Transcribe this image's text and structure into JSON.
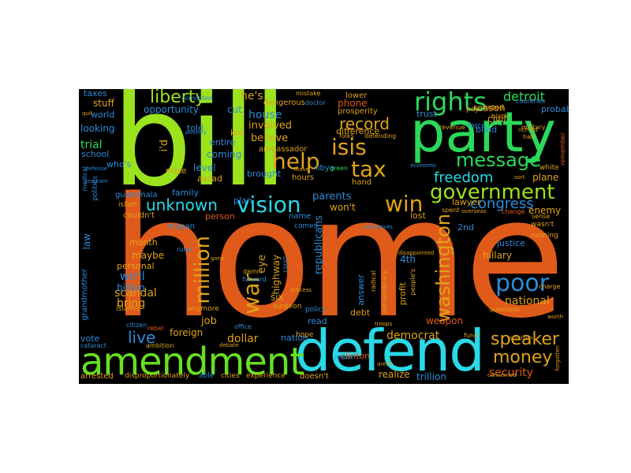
{
  "cloud": {
    "background": "#000000",
    "words": [
      {
        "text": "home",
        "color": "#e05a1a"
      },
      {
        "text": "bill",
        "color": "#9be31d"
      },
      {
        "text": "party",
        "color": "#2bd95a"
      },
      {
        "text": "defend",
        "color": "#29d9e6"
      },
      {
        "text": "amendment",
        "color": "#66e021"
      },
      {
        "text": "rights",
        "color": "#2bd95a"
      },
      {
        "text": "government",
        "color": "#9be31d"
      },
      {
        "text": "message",
        "color": "#2bd95a"
      },
      {
        "text": "tax",
        "color": "#e0a21a"
      },
      {
        "text": "isis",
        "color": "#e0a21a"
      },
      {
        "text": "vision",
        "color": "#29d9e6"
      },
      {
        "text": "help",
        "color": "#e0a21a"
      },
      {
        "text": "freedom",
        "color": "#29d9e6"
      },
      {
        "text": "win",
        "color": "#e0a21a"
      },
      {
        "text": "poor",
        "color": "#2b8cd9"
      },
      {
        "text": "speaker",
        "color": "#e0a21a"
      },
      {
        "text": "money",
        "color": "#e0a21a"
      },
      {
        "text": "war",
        "color": "#e0a21a"
      },
      {
        "text": "million",
        "color": "#e0a21a"
      },
      {
        "text": "washington",
        "color": "#e0a21a"
      },
      {
        "text": "liberty",
        "color": "#9be31d"
      },
      {
        "text": "unknown",
        "color": "#29d9e6"
      },
      {
        "text": "record",
        "color": "#e0a21a"
      },
      {
        "text": "congress",
        "color": "#2b8cd9"
      },
      {
        "text": "live",
        "color": "#2b8cd9"
      },
      {
        "text": "detroit",
        "color": "#2bd95a"
      },
      {
        "text": "national",
        "color": "#e0a21a"
      },
      {
        "text": "security",
        "color": "#e05a1a"
      },
      {
        "text": "democrat",
        "color": "#e0a21a"
      },
      {
        "text": "dollar",
        "color": "#e0a21a"
      },
      {
        "text": "trillion",
        "color": "#2b8cd9"
      },
      {
        "text": "scandal",
        "color": "#e0a21a"
      },
      {
        "text": "bring",
        "color": "#e0a21a"
      },
      {
        "text": "we'll",
        "color": "#2b8cd9"
      },
      {
        "text": "billion",
        "color": "#2b8cd9"
      },
      {
        "text": "house",
        "color": "#2b8cd9"
      },
      {
        "text": "involved",
        "color": "#e0a21a"
      },
      {
        "text": "believe",
        "color": "#e0a21a"
      },
      {
        "text": "he's",
        "color": "#e0a21a"
      },
      {
        "text": "i'd",
        "color": "#e0a21a"
      },
      {
        "text": "level",
        "color": "#2b8cd9"
      },
      {
        "text": "coming",
        "color": "#2b8cd9"
      },
      {
        "text": "trial",
        "color": "#2bd95a"
      },
      {
        "text": "opportunity",
        "color": "#2b8cd9"
      },
      {
        "text": "cut",
        "color": "#2b8cd9"
      },
      {
        "text": "phone",
        "color": "#e05a1a"
      },
      {
        "text": "republicans",
        "color": "#2b8cd9"
      },
      {
        "text": "parents",
        "color": "#2b8cd9"
      },
      {
        "text": "won't",
        "color": "#e0a21a"
      },
      {
        "text": "plane",
        "color": "#e0a21a"
      },
      {
        "text": "enemy",
        "color": "#e0a21a"
      },
      {
        "text": "hillary",
        "color": "#e0a21a"
      },
      {
        "text": "justice",
        "color": "#2b8cd9"
      },
      {
        "text": "job",
        "color": "#e0a21a"
      },
      {
        "text": "foreign",
        "color": "#e0a21a"
      },
      {
        "text": "vote",
        "color": "#2b8cd9"
      },
      {
        "text": "law",
        "color": "#2b8cd9"
      },
      {
        "text": "maybe",
        "color": "#e0a21a"
      },
      {
        "text": "month",
        "color": "#e0a21a"
      },
      {
        "text": "stuff",
        "color": "#e0a21a"
      },
      {
        "text": "taxes",
        "color": "#2b8cd9"
      },
      {
        "text": "looking",
        "color": "#2b8cd9"
      },
      {
        "text": "world",
        "color": "#2b8cd9"
      },
      {
        "text": "school",
        "color": "#2b8cd9"
      },
      {
        "text": "who's",
        "color": "#2b8cd9"
      },
      {
        "text": "mike",
        "color": "#e0a21a"
      },
      {
        "text": "six",
        "color": "#e0a21a"
      },
      {
        "text": "eye",
        "color": "#e0a21a"
      },
      {
        "text": "highway",
        "color": "#e0a21a"
      },
      {
        "text": "4th",
        "color": "#2b8cd9"
      },
      {
        "text": "2nd",
        "color": "#2b8cd9"
      },
      {
        "text": "lawyer",
        "color": "#e0a21a"
      },
      {
        "text": "weapon",
        "color": "#e05a1a"
      },
      {
        "text": "realize",
        "color": "#e0a21a"
      },
      {
        "text": "clinton",
        "color": "#e05a1a"
      },
      {
        "text": "read",
        "color": "#2b8cd9"
      },
      {
        "text": "nation",
        "color": "#2b8cd9"
      },
      {
        "text": "debt",
        "color": "#e0a21a"
      },
      {
        "text": "answer",
        "color": "#2b8cd9"
      },
      {
        "text": "profit",
        "color": "#e0a21a"
      },
      {
        "text": "reason",
        "color": "#e0a21a"
      },
      {
        "text": "probably",
        "color": "#2b8cd9"
      },
      {
        "text": "civil",
        "color": "#e0a21a"
      },
      {
        "text": "trust",
        "color": "#2b8cd9"
      },
      {
        "text": "kid",
        "color": "#e0a21a"
      },
      {
        "text": "told",
        "color": "#2b8cd9"
      },
      {
        "text": "entire",
        "color": "#2b8cd9"
      },
      {
        "text": "brought",
        "color": "#2b8cd9"
      },
      {
        "text": "hours",
        "color": "#e0a21a"
      },
      {
        "text": "dangerous",
        "color": "#e0a21a"
      },
      {
        "text": "difference",
        "color": "#e0a21a"
      },
      {
        "text": "prosperity",
        "color": "#e0a21a"
      },
      {
        "text": "personal",
        "color": "#e0a21a"
      },
      {
        "text": "arrested",
        "color": "#e0a21a"
      },
      {
        "text": "disproportionately",
        "color": "#e0a21a"
      },
      {
        "text": "able",
        "color": "#2b8cd9"
      },
      {
        "text": "cities",
        "color": "#e0a21a"
      },
      {
        "text": "experience",
        "color": "#e0a21a"
      },
      {
        "text": "doesn't",
        "color": "#e0a21a"
      },
      {
        "text": "hope",
        "color": "#e0a21a"
      },
      {
        "text": "family",
        "color": "#2b8cd9"
      },
      {
        "text": "reagan",
        "color": "#2b8cd9"
      },
      {
        "text": "person",
        "color": "#e05a1a"
      },
      {
        "text": "couldn't",
        "color": "#e0a21a"
      },
      {
        "text": "assad",
        "color": "#e0a21a"
      },
      {
        "text": "plan",
        "color": "#2b8cd9"
      },
      {
        "text": "name",
        "color": "#2b8cd9"
      },
      {
        "text": "comes",
        "color": "#2b8cd9"
      },
      {
        "text": "lost",
        "color": "#e0a21a"
      },
      {
        "text": "ambassador",
        "color": "#e0a21a"
      },
      {
        "text": "libya",
        "color": "#2b8cd9"
      },
      {
        "text": "hand",
        "color": "#e0a21a"
      },
      {
        "text": "islamic",
        "color": "#e0a21a"
      },
      {
        "text": "anymore",
        "color": "#e0a21a"
      },
      {
        "text": "surgeon",
        "color": "#e0a21a"
      },
      {
        "text": "policy",
        "color": "#2b8cd9"
      },
      {
        "text": "guatemala",
        "color": "#2b8cd9"
      },
      {
        "text": "islam",
        "color": "#e0a21a"
      },
      {
        "text": "grandmother",
        "color": "#2b8cd9"
      },
      {
        "text": "politics",
        "color": "#2b8cd9"
      },
      {
        "text": "medical",
        "color": "#2b8cd9"
      },
      {
        "text": "lower",
        "color": "#e0a21a"
      },
      {
        "text": "blind",
        "color": "#2b8cd9"
      },
      {
        "text": "voted",
        "color": "#e0a21a"
      },
      {
        "text": "white",
        "color": "#e0a21a"
      },
      {
        "text": "running",
        "color": "#e0a21a"
      },
      {
        "text": "wasn't",
        "color": "#e0a21a"
      },
      {
        "text": "sense",
        "color": "#e0a21a"
      },
      {
        "text": "change",
        "color": "#e05a1a"
      },
      {
        "text": "charge",
        "color": "#e0a21a"
      },
      {
        "text": "fund",
        "color": "#e0a21a"
      },
      {
        "text": "force",
        "color": "#2b8cd9"
      },
      {
        "text": "revenue",
        "color": "#e0a21a"
      },
      {
        "text": "countries",
        "color": "#2b8cd9"
      },
      {
        "text": "military",
        "color": "#e0a21a"
      },
      {
        "text": "half",
        "color": "#e0a21a"
      },
      {
        "text": "black",
        "color": "#e0a21a"
      },
      {
        "text": "pay",
        "color": "#e0a21a"
      },
      {
        "text": "mistake",
        "color": "#e0a21a"
      },
      {
        "text": "doctor",
        "color": "#2b8cd9"
      },
      {
        "text": "convicted",
        "color": "#2b8cd9"
      },
      {
        "text": "ambition",
        "color": "#e0a21a"
      },
      {
        "text": "cataract",
        "color": "#2b8cd9"
      },
      {
        "text": "rebel",
        "color": "#e05a1a"
      },
      {
        "text": "citizen",
        "color": "#2b8cd9"
      },
      {
        "text": "office",
        "color": "#2b8cd9"
      },
      {
        "text": "damn",
        "color": "#e0a21a"
      },
      {
        "text": "forward",
        "color": "#2b8cd9"
      },
      {
        "text": "court",
        "color": "#2b8cd9"
      },
      {
        "text": "radical",
        "color": "#e0a21a"
      },
      {
        "text": "extraordinary",
        "color": "#e0a21a"
      },
      {
        "text": "people's",
        "color": "#e0a21a"
      },
      {
        "text": "disappointed",
        "color": "#e0a21a"
      },
      {
        "text": "companies",
        "color": "#2b8cd9"
      },
      {
        "text": "spent",
        "color": "#e0a21a"
      },
      {
        "text": "green",
        "color": "#2bd95a"
      },
      {
        "text": "defending",
        "color": "#e0a21a"
      },
      {
        "text": "folks",
        "color": "#e0a21a"
      },
      {
        "text": "rules",
        "color": "#2b8cd9"
      },
      {
        "text": "reform",
        "color": "#2b8cd9"
      },
      {
        "text": "aren't",
        "color": "#e0a21a"
      },
      {
        "text": "questions",
        "color": "#e0a21a"
      },
      {
        "text": "troops",
        "color": "#e0a21a"
      },
      {
        "text": "concerned",
        "color": "#e0a21a"
      },
      {
        "text": "proclaim",
        "color": "#e0a21a"
      },
      {
        "text": "worth",
        "color": "#e0a21a"
      },
      {
        "text": "economic",
        "color": "#2b8cd9"
      },
      {
        "text": "defense",
        "color": "#2b8cd9"
      },
      {
        "text": "richard",
        "color": "#e0a21a"
      },
      {
        "text": "remember",
        "color": "#e05a1a"
      },
      {
        "text": "forgotten",
        "color": "#e0a21a"
      },
      {
        "text": "quit",
        "color": "#e0a21a"
      },
      {
        "text": "poverty",
        "color": "#2b8cd9"
      },
      {
        "text": "gone",
        "color": "#e0a21a"
      },
      {
        "text": "debate",
        "color": "#e0a21a"
      },
      {
        "text": "leave",
        "color": "#e0a21a"
      },
      {
        "text": "sort",
        "color": "#e0a21a"
      },
      {
        "text": "overseas",
        "color": "#e0a21a"
      },
      {
        "text": "process",
        "color": "#e0a21a"
      },
      {
        "text": "program",
        "color": "#2b8cd9"
      }
    ]
  }
}
